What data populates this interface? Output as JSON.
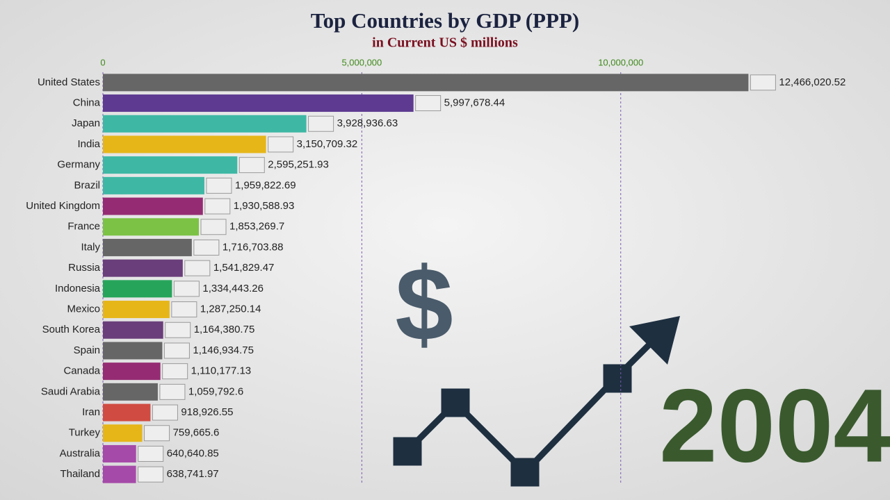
{
  "chart_data": {
    "type": "bar",
    "title": "Top Countries by GDP (PPP)",
    "subtitle": "in Current US $ millions",
    "categories": [
      "United States",
      "China",
      "Japan",
      "India",
      "Germany",
      "Brazil",
      "United Kingdom",
      "France",
      "Italy",
      "Russia",
      "Indonesia",
      "Mexico",
      "South Korea",
      "Spain",
      "Canada",
      "Saudi Arabia",
      "Iran",
      "Turkey",
      "Australia",
      "Thailand"
    ],
    "values": [
      12466020.52,
      5997678.44,
      3928936.63,
      3150709.32,
      2595251.93,
      1959822.69,
      1930588.93,
      1853269.7,
      1716703.88,
      1541829.47,
      1334443.26,
      1287250.14,
      1164380.75,
      1146934.75,
      1110177.13,
      1059792.6,
      918926.55,
      759665.6,
      640640.85,
      638741.97
    ],
    "value_labels": [
      "12,466,020.52",
      "5,997,678.44",
      "3,928,936.63",
      "3,150,709.32",
      "2,595,251.93",
      "1,959,822.69",
      "1,930,588.93",
      "1,853,269.7",
      "1,716,703.88",
      "1,541,829.47",
      "1,334,443.26",
      "1,287,250.14",
      "1,164,380.75",
      "1,146,934.75",
      "1,110,177.13",
      "1,059,792.6",
      "918,926.55",
      "759,665.6",
      "640,640.85",
      "638,741.97"
    ],
    "colors": [
      "#666666",
      "#5e3b91",
      "#3eb8a5",
      "#e6b619",
      "#3eb8a5",
      "#3eb8a5",
      "#952c73",
      "#7cc244",
      "#666666",
      "#6a3e7a",
      "#26a55a",
      "#e6b619",
      "#6a3e7a",
      "#666666",
      "#952c73",
      "#666666",
      "#d04c42",
      "#e6b619",
      "#a54aa8",
      "#a54aa8"
    ],
    "xlim": [
      0,
      15200000
    ],
    "xticks": [
      0,
      {
        "value": 5000000,
        "label": "5,000,000"
      },
      {
        "value": 10000000,
        "label": "10,000,000"
      }
    ],
    "grid": true,
    "year": "2004",
    "symbol": "$"
  }
}
